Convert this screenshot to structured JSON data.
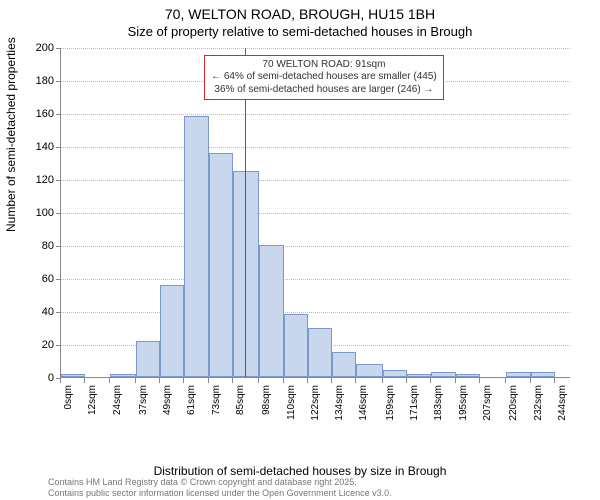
{
  "title": {
    "line1": "70, WELTON ROAD, BROUGH, HU15 1BH",
    "line2": "Size of property relative to semi-detached houses in Brough"
  },
  "chart": {
    "type": "histogram",
    "ylabel": "Number of semi-detached properties",
    "xlabel": "Distribution of semi-detached houses by size in Brough",
    "ylim": [
      0,
      200
    ],
    "ytick_step": 20,
    "yticks": [
      0,
      20,
      40,
      60,
      80,
      100,
      120,
      140,
      160,
      180,
      200
    ],
    "xlim_sqm": [
      0,
      252
    ],
    "xticks_sqm": [
      0,
      12,
      24,
      37,
      49,
      61,
      73,
      85,
      98,
      110,
      122,
      134,
      146,
      159,
      171,
      183,
      195,
      207,
      220,
      232,
      244
    ],
    "xtick_labels": [
      "0sqm",
      "12sqm",
      "24sqm",
      "37sqm",
      "49sqm",
      "61sqm",
      "73sqm",
      "85sqm",
      "98sqm",
      "110sqm",
      "122sqm",
      "134sqm",
      "146sqm",
      "159sqm",
      "171sqm",
      "183sqm",
      "195sqm",
      "207sqm",
      "220sqm",
      "232sqm",
      "244sqm"
    ],
    "bar_fill": "#c8d7ec",
    "bar_stroke": "#7a98c9",
    "grid_color": "#bbbbbb",
    "axis_color": "#888888",
    "background": "#ffffff",
    "tick_fontsize": 11,
    "label_fontsize": 12,
    "bins": [
      {
        "start": 0,
        "end": 12,
        "count": 2
      },
      {
        "start": 12,
        "end": 24,
        "count": 0
      },
      {
        "start": 24,
        "end": 37,
        "count": 2
      },
      {
        "start": 37,
        "end": 49,
        "count": 22
      },
      {
        "start": 49,
        "end": 61,
        "count": 56
      },
      {
        "start": 61,
        "end": 73,
        "count": 158
      },
      {
        "start": 73,
        "end": 85,
        "count": 136
      },
      {
        "start": 85,
        "end": 98,
        "count": 125
      },
      {
        "start": 98,
        "end": 110,
        "count": 80
      },
      {
        "start": 110,
        "end": 122,
        "count": 38
      },
      {
        "start": 122,
        "end": 134,
        "count": 30
      },
      {
        "start": 134,
        "end": 146,
        "count": 15
      },
      {
        "start": 146,
        "end": 159,
        "count": 8
      },
      {
        "start": 159,
        "end": 171,
        "count": 4
      },
      {
        "start": 171,
        "end": 183,
        "count": 2
      },
      {
        "start": 183,
        "end": 195,
        "count": 3
      },
      {
        "start": 195,
        "end": 207,
        "count": 2
      },
      {
        "start": 207,
        "end": 220,
        "count": 0
      },
      {
        "start": 220,
        "end": 232,
        "count": 3
      },
      {
        "start": 232,
        "end": 244,
        "count": 3
      },
      {
        "start": 244,
        "end": 252,
        "count": 0
      }
    ],
    "marker_line": {
      "value_sqm": 91,
      "color": "#d62728",
      "width": 1.5
    },
    "annotation": {
      "lines": [
        "70 WELTON ROAD: 91sqm",
        "← 64% of semi-detached houses are smaller (445)",
        "36% of semi-detached houses are larger (246) →"
      ],
      "border_color": "#d62728",
      "text_color": "#333333",
      "fontsize": 10,
      "top_fraction_from_top": 0.02,
      "center_sqm": 130
    }
  },
  "footer": {
    "line1": "Contains HM Land Registry data © Crown copyright and database right 2025.",
    "line2": "Contains public sector information licensed under the Open Government Licence v3.0."
  }
}
